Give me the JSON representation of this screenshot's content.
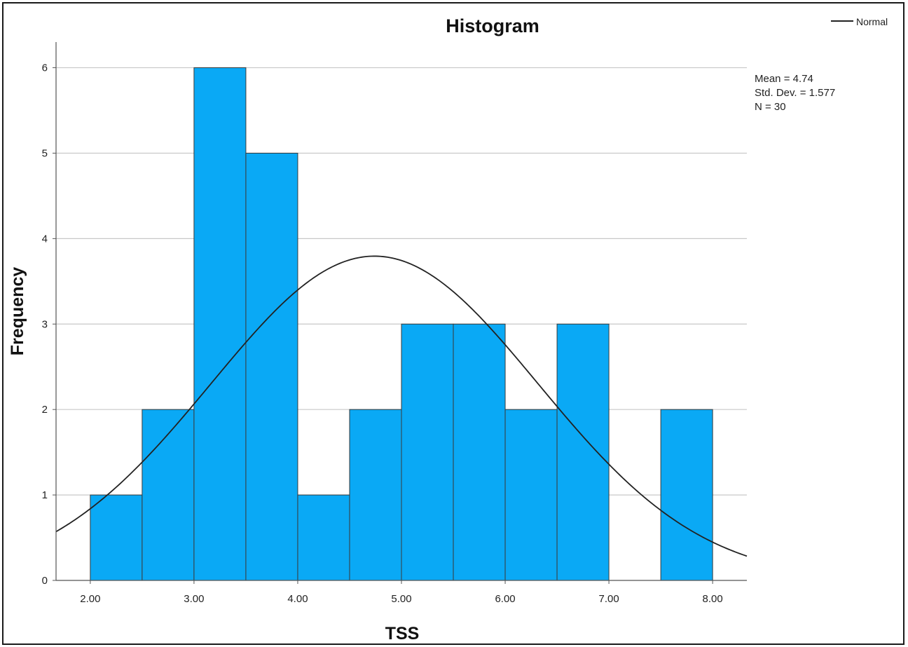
{
  "chart_data": {
    "type": "bar",
    "title": "Histogram",
    "xlabel": "TSS",
    "ylabel": "Frequency",
    "bins": [
      {
        "start": 2.0,
        "end": 2.5,
        "count": 1
      },
      {
        "start": 2.5,
        "end": 3.0,
        "count": 2
      },
      {
        "start": 3.0,
        "end": 3.5,
        "count": 6
      },
      {
        "start": 3.5,
        "end": 4.0,
        "count": 5
      },
      {
        "start": 4.0,
        "end": 4.5,
        "count": 1
      },
      {
        "start": 4.5,
        "end": 5.0,
        "count": 2
      },
      {
        "start": 5.0,
        "end": 5.5,
        "count": 3
      },
      {
        "start": 5.5,
        "end": 6.0,
        "count": 3
      },
      {
        "start": 6.0,
        "end": 6.5,
        "count": 2
      },
      {
        "start": 6.5,
        "end": 7.0,
        "count": 3
      },
      {
        "start": 7.0,
        "end": 7.5,
        "count": 0
      },
      {
        "start": 7.5,
        "end": 8.0,
        "count": 2
      }
    ],
    "x_ticks": [
      "2.00",
      "3.00",
      "4.00",
      "5.00",
      "6.00",
      "7.00",
      "8.00"
    ],
    "y_ticks": [
      "0",
      "1",
      "2",
      "3",
      "4",
      "5",
      "6"
    ],
    "xlim": [
      1.67,
      8.33
    ],
    "ylim": [
      0,
      6.3
    ],
    "grid": true,
    "normal_curve": {
      "mean": 4.74,
      "std": 1.577,
      "n": 30,
      "bin_width": 0.5
    },
    "legend": {
      "entries": [
        "Normal"
      ],
      "position": "top-right"
    },
    "stats": [
      "Mean = 4.74",
      "Std. Dev. = 1.577",
      "N = 30"
    ],
    "colors": {
      "bar": "#0aa9f5",
      "bar_edge": "#3a3a3a",
      "curve": "#222222",
      "grid": "#c8c8c8"
    }
  }
}
